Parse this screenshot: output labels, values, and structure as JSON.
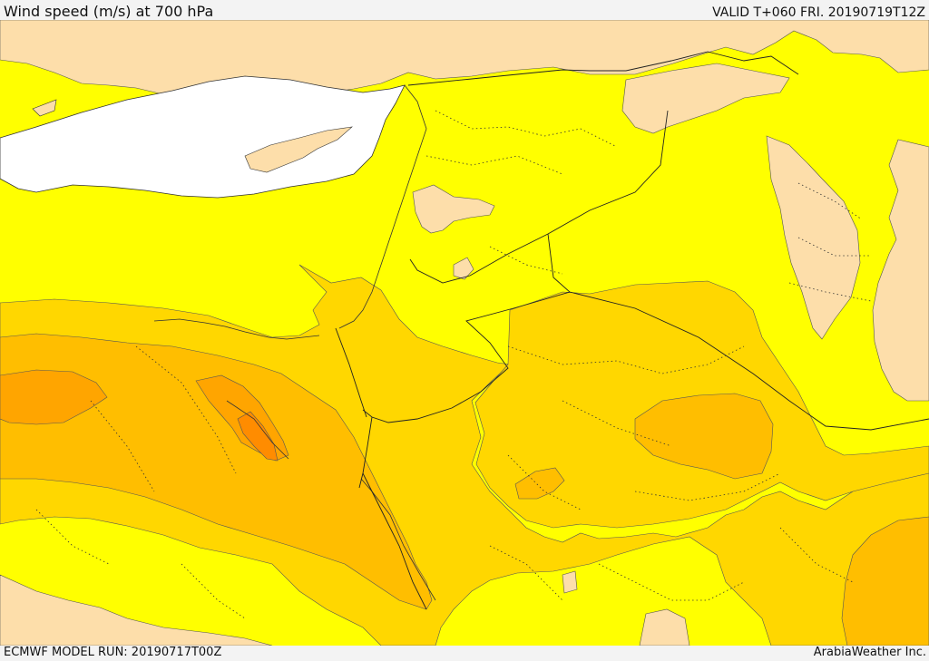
{
  "header": {
    "title": "Wind speed (m/s) at 700 hPa",
    "valid": "VALID T+060 FRI. 20190719T12Z"
  },
  "footer": {
    "model_run": "ECMWF MODEL RUN: 20190717T00Z",
    "credit": "ArabiaWeather Inc."
  },
  "colors": {
    "sea": "#ffffff",
    "land_calm": "#fddeaa",
    "band_1": "#ffff00",
    "band_2": "#ffd700",
    "band_3": "#ffbe00",
    "band_4": "#ffa500",
    "band_5": "#ff8c00",
    "outline": "#333333"
  }
}
